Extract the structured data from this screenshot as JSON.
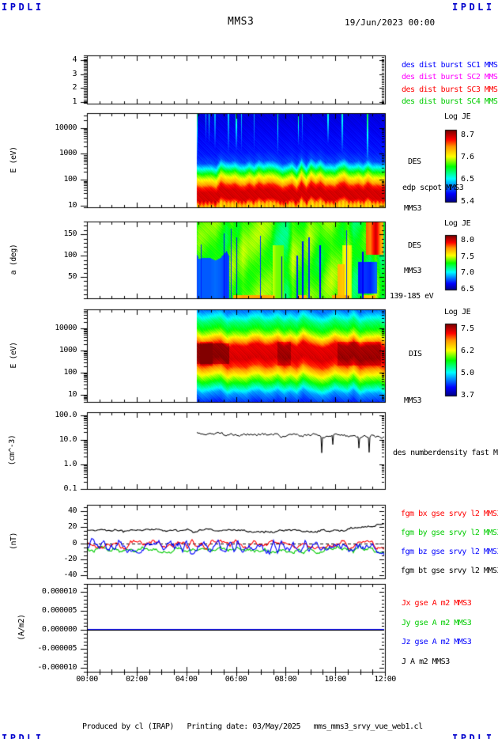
{
  "logo": "IPDLI",
  "header": {
    "spacecraft": "MMS3",
    "datetime": "19/Jun/2023 00:00"
  },
  "footer": "Produced by cl (IRAP)   Printing date: 03/May/2025   mms_mms3_srvy_vue_web1.cl",
  "colors": {
    "axis": "#000000",
    "logo_blue": "#0000cc",
    "sc1_blue": "#0000ff",
    "sc2_magenta": "#ff00ff",
    "sc3_red": "#ff0000",
    "sc4_green": "#00cc00"
  },
  "time_axis": {
    "start_hour": 0,
    "end_hour": 12,
    "major_tick_hours": 2,
    "minor_tick_hours": 0.5,
    "tick_labels": [
      "00:00",
      "02:00",
      "04:00",
      "06:00",
      "08:00",
      "10:00",
      "12:00"
    ]
  },
  "chart_data": [
    {
      "id": "burst-availability",
      "type": "line",
      "ylabel": "",
      "yaxis": {
        "scale": "linear",
        "min": 0.89,
        "max": 4.34,
        "minor_step": 0.12,
        "major_ticks": [
          {
            "v": 4,
            "label": "4"
          },
          {
            "v": 3,
            "label": "3"
          },
          {
            "v": 2,
            "label": "2"
          },
          {
            "v": 1,
            "label": "1"
          }
        ]
      },
      "legend": [
        {
          "label": "des dist burst SC1 MMS1",
          "color": "#0000ff"
        },
        {
          "label": "des dist burst SC2 MMS2",
          "color": "#ff00ff"
        },
        {
          "label": "des dist burst SC3 MMS3",
          "color": "#ff0000"
        },
        {
          "label": "des dist burst SC4 MMS4",
          "color": "#00cc00"
        }
      ],
      "series": [],
      "note": "panel empty - no burst intervals plotted"
    },
    {
      "id": "des-energy-spectrogram",
      "type": "heatmap",
      "ylabel": "E (eV)",
      "yaxis": {
        "scale": "log",
        "min": 8.7,
        "max": 37000,
        "major_ticks": [
          {
            "v": 10000,
            "label": "10000"
          },
          {
            "v": 1000,
            "label": "1000"
          },
          {
            "v": 100,
            "label": "100"
          },
          {
            "v": 10,
            "label": "10"
          }
        ]
      },
      "right_labels": [
        "DES",
        "edp scpot MMS3",
        "MMS3"
      ],
      "colorbar": {
        "title": "Log JE",
        "tick_labels": [
          "8.7",
          "7.6",
          "6.5",
          "5.4"
        ]
      },
      "data_start_hour": 4.42,
      "bands": [
        {
          "energy_eV": [
            1000,
            37000
          ],
          "log_je": "5.4-6.0 (dark blue)"
        },
        {
          "energy_eV": [
            250,
            1000
          ],
          "log_je": "6.5-7.6 (green-yellow)"
        },
        {
          "energy_eV": [
            20,
            250
          ],
          "log_je": "8.3-8.7 (red)"
        },
        {
          "energy_eV": [
            8.7,
            20
          ],
          "log_je": "7.6-8.0 (orange)"
        }
      ]
    },
    {
      "id": "des-pitch-angle-spectrogram",
      "type": "heatmap",
      "ylabel": "a (deg)",
      "yaxis": {
        "scale": "linear",
        "min": 0,
        "max": 180,
        "minor_step": 10,
        "major_ticks": [
          {
            "v": 150,
            "label": "150"
          },
          {
            "v": 100,
            "label": "100"
          },
          {
            "v": 50,
            "label": "50"
          }
        ]
      },
      "right_labels": [
        "DES",
        "MMS3",
        "139-185 eV"
      ],
      "colorbar": {
        "title": "Log JE",
        "tick_labels": [
          "8.0",
          "7.5",
          "7.0",
          "6.5"
        ]
      },
      "data_start_hour": 4.42,
      "features": "mostly ~7.3 (green) with vertical dropouts to <6.5 (blue); low pitch-angle depletion 04:30-06:00; enhancement to ~8.0 (orange-red) after 11:00 at high pitch angles"
    },
    {
      "id": "dis-energy-spectrogram",
      "type": "heatmap",
      "ylabel": "E (eV)",
      "yaxis": {
        "scale": "log",
        "min": 4.8,
        "max": 72000,
        "major_ticks": [
          {
            "v": 10000,
            "label": "10000"
          },
          {
            "v": 1000,
            "label": "1000"
          },
          {
            "v": 100,
            "label": "100"
          },
          {
            "v": 10,
            "label": "10"
          }
        ]
      },
      "right_labels": [
        "DIS",
        "MMS3"
      ],
      "colorbar": {
        "title": "Log JE",
        "tick_labels": [
          "7.5",
          "6.2",
          "5.0",
          "3.7"
        ]
      },
      "data_start_hour": 4.42,
      "bands": [
        {
          "energy_eV": [
            5000,
            72000
          ],
          "log_je": "5.0-6.0 (green-blue)"
        },
        {
          "energy_eV": [
            400,
            5000
          ],
          "log_je": "7.0-7.5 (red)"
        },
        {
          "energy_eV": [
            50,
            400
          ],
          "log_je": "5.5-6.2 (yellow-green)"
        },
        {
          "energy_eV": [
            4.8,
            50
          ],
          "log_je": "3.7-4.5 (blue)"
        }
      ]
    },
    {
      "id": "des-number-density",
      "type": "line",
      "ylabel": "(cm^-3)",
      "yaxis": {
        "scale": "log",
        "min": 0.1,
        "max": 130,
        "major_ticks": [
          {
            "v": 100,
            "label": "100.0"
          },
          {
            "v": 10,
            "label": "10.0"
          },
          {
            "v": 1,
            "label": "1.0"
          },
          {
            "v": 0.1,
            "label": "0.1"
          }
        ]
      },
      "right_labels": [
        "des numberdensity fast M"
      ],
      "data_start_hour": 4.42,
      "series": [
        {
          "name": "des numberdensity fast",
          "color": "#000000",
          "x_hours": [
            4.5,
            5,
            6,
            7,
            8,
            9,
            10,
            11,
            12
          ],
          "values_cm3": [
            20,
            19,
            14,
            13,
            12,
            13,
            12,
            14,
            12
          ],
          "note": "occasional sharp dips to ~2-3 cm^-3"
        }
      ]
    },
    {
      "id": "fgm-magnetic-field",
      "type": "line",
      "ylabel": "(nT)",
      "yaxis": {
        "scale": "linear",
        "min": -44,
        "max": 48,
        "minor_step": 5,
        "major_ticks": [
          {
            "v": 40,
            "label": "40"
          },
          {
            "v": 20,
            "label": "20"
          },
          {
            "v": 0,
            "label": "0"
          },
          {
            "v": -20,
            "label": "-20"
          },
          {
            "v": -40,
            "label": "-40"
          }
        ]
      },
      "legend": [
        {
          "label": "fgm bx gse srvy l2 MMS3",
          "color": "#ff0000"
        },
        {
          "label": "fgm by gse srvy l2 MMS3",
          "color": "#00cc00"
        },
        {
          "label": "fgm bz gse srvy l2 MMS3",
          "color": "#0000ff"
        },
        {
          "label": "fgm bt gse srvy l2 MMS3",
          "color": "#000000"
        }
      ],
      "series": [
        {
          "name": "bx",
          "color": "#ff0000",
          "mean_nT": -2,
          "range_nT": [
            -15,
            8
          ]
        },
        {
          "name": "by",
          "color": "#00cc00",
          "mean_nT": -9,
          "range_nT": [
            -18,
            5
          ]
        },
        {
          "name": "bz",
          "color": "#0000ff",
          "mean_nT": -4,
          "range_nT": [
            -22,
            12
          ]
        },
        {
          "name": "bt",
          "color": "#000000",
          "mean_nT": 16,
          "range_nT": [
            12,
            27
          ],
          "note": "rises to ~25 nT after 10:30"
        }
      ]
    },
    {
      "id": "current-density",
      "type": "line",
      "ylabel": "(A/m2)",
      "yaxis": {
        "scale": "linear",
        "min": -1.1e-05,
        "max": 1.21e-05,
        "minor_step": 1e-06,
        "major_ticks": [
          {
            "v": 1e-05,
            "label": "0.000010"
          },
          {
            "v": 5e-06,
            "label": "0.000005"
          },
          {
            "v": 0,
            "label": "0.000000"
          },
          {
            "v": -5e-06,
            "label": "-0.000005"
          },
          {
            "v": -1e-05,
            "label": "-0.000010"
          }
        ]
      },
      "legend": [
        {
          "label": "Jx gse A m2 MMS3",
          "color": "#ff0000"
        },
        {
          "label": "Jy gse A m2 MMS3",
          "color": "#00cc00"
        },
        {
          "label": "Jz gse A m2 MMS3",
          "color": "#0000ff"
        },
        {
          "label": "J A m2 MMS3",
          "color": "#000000"
        }
      ],
      "series": [
        {
          "name": "J all components",
          "value_A_m2": 0,
          "note": "flat line at 0.000000 across 00:00-12:00"
        }
      ]
    }
  ]
}
